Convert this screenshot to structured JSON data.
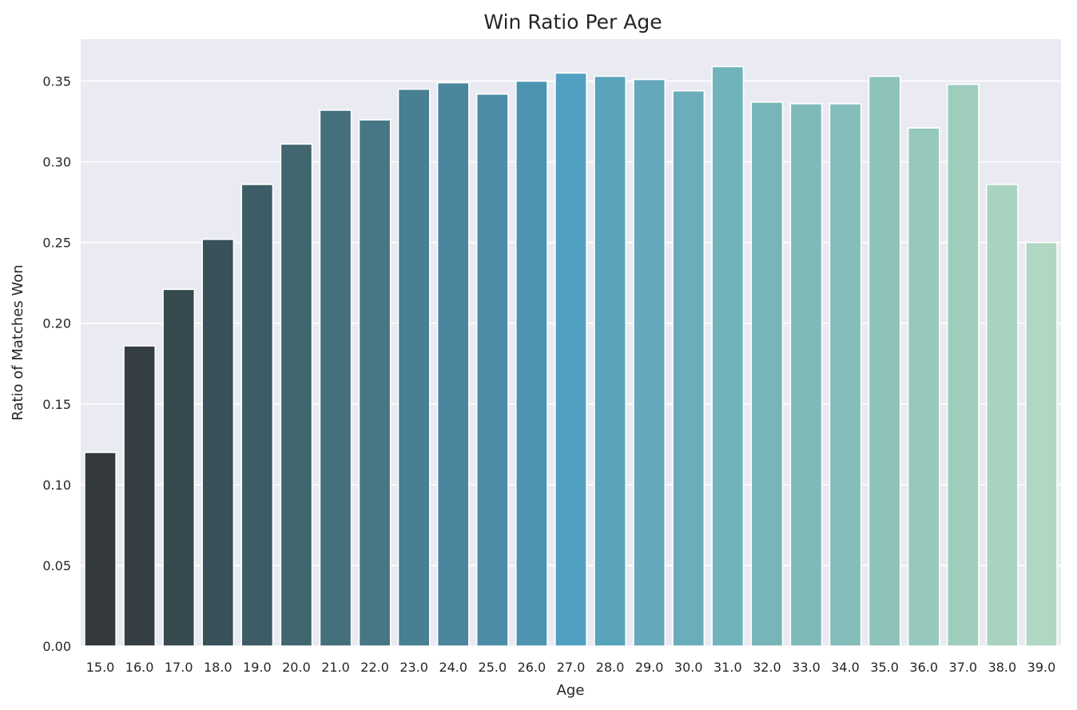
{
  "chart_data": {
    "type": "bar",
    "title": "Win Ratio Per Age",
    "xlabel": "Age",
    "ylabel": "Ratio of Matches Won",
    "categories": [
      "15.0",
      "16.0",
      "17.0",
      "18.0",
      "19.0",
      "20.0",
      "21.0",
      "22.0",
      "23.0",
      "24.0",
      "25.0",
      "26.0",
      "27.0",
      "28.0",
      "29.0",
      "30.0",
      "31.0",
      "32.0",
      "33.0",
      "34.0",
      "35.0",
      "36.0",
      "37.0",
      "38.0",
      "39.0"
    ],
    "values": [
      0.12,
      0.186,
      0.221,
      0.252,
      0.286,
      0.311,
      0.332,
      0.326,
      0.345,
      0.349,
      0.342,
      0.35,
      0.355,
      0.353,
      0.351,
      0.344,
      0.359,
      0.337,
      0.336,
      0.336,
      0.353,
      0.321,
      0.348,
      0.286,
      0.25
    ],
    "ylim": [
      0,
      0.376
    ],
    "yticks": [
      "0.00",
      "0.05",
      "0.10",
      "0.15",
      "0.20",
      "0.25",
      "0.30",
      "0.35"
    ],
    "ytick_values": [
      0,
      0.05,
      0.1,
      0.15,
      0.2,
      0.25,
      0.3,
      0.35
    ],
    "grid": true,
    "colors": {
      "background": "#eaeaf2",
      "grid": "#ffffff",
      "bars": [
        "#343a3c",
        "#353f43",
        "#374a50",
        "#395159",
        "#3d5c66",
        "#416670",
        "#44707d",
        "#467784",
        "#477f93",
        "#4a869d",
        "#4b8ca7",
        "#4d94b1",
        "#51a0c1",
        "#59a3bb",
        "#64a8bc",
        "#6badbb",
        "#71b3bb",
        "#77b5b9",
        "#7fbab9",
        "#85bdba",
        "#8ec3bb",
        "#97c8bd",
        "#9fcdbd",
        "#a8d3c0",
        "#b0d7c1"
      ]
    }
  }
}
